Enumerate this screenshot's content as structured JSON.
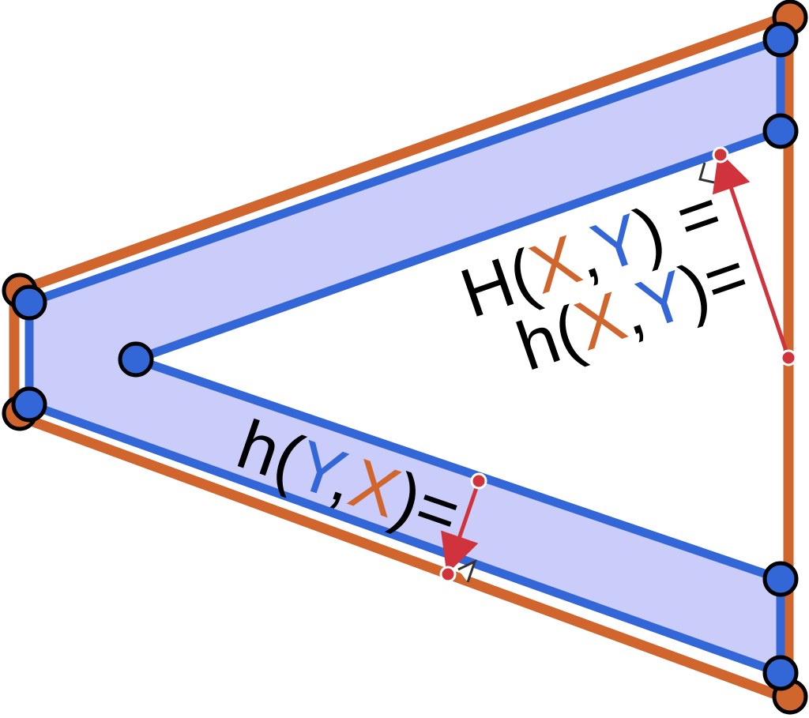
{
  "colors": {
    "polygon_X": "#D0662E",
    "polygon_Y": "#3366D6",
    "fill_region": "#CACCFA",
    "distance_arrow": "#D1333C",
    "vertex_outline": "#000000"
  },
  "labels": {
    "hausdorff_eq": {
      "prefix": "H(",
      "first": "X",
      "comma": ",",
      "second": "Y",
      "suffix": ") ="
    },
    "directed_xy_eq": {
      "prefix": "h(",
      "first": "X",
      "comma": ",",
      "second": "Y",
      "suffix": ")="
    },
    "directed_yx_eq": {
      "prefix": "h(",
      "first": "Y",
      "comma": ",",
      "second": "X",
      "suffix": ")="
    }
  }
}
